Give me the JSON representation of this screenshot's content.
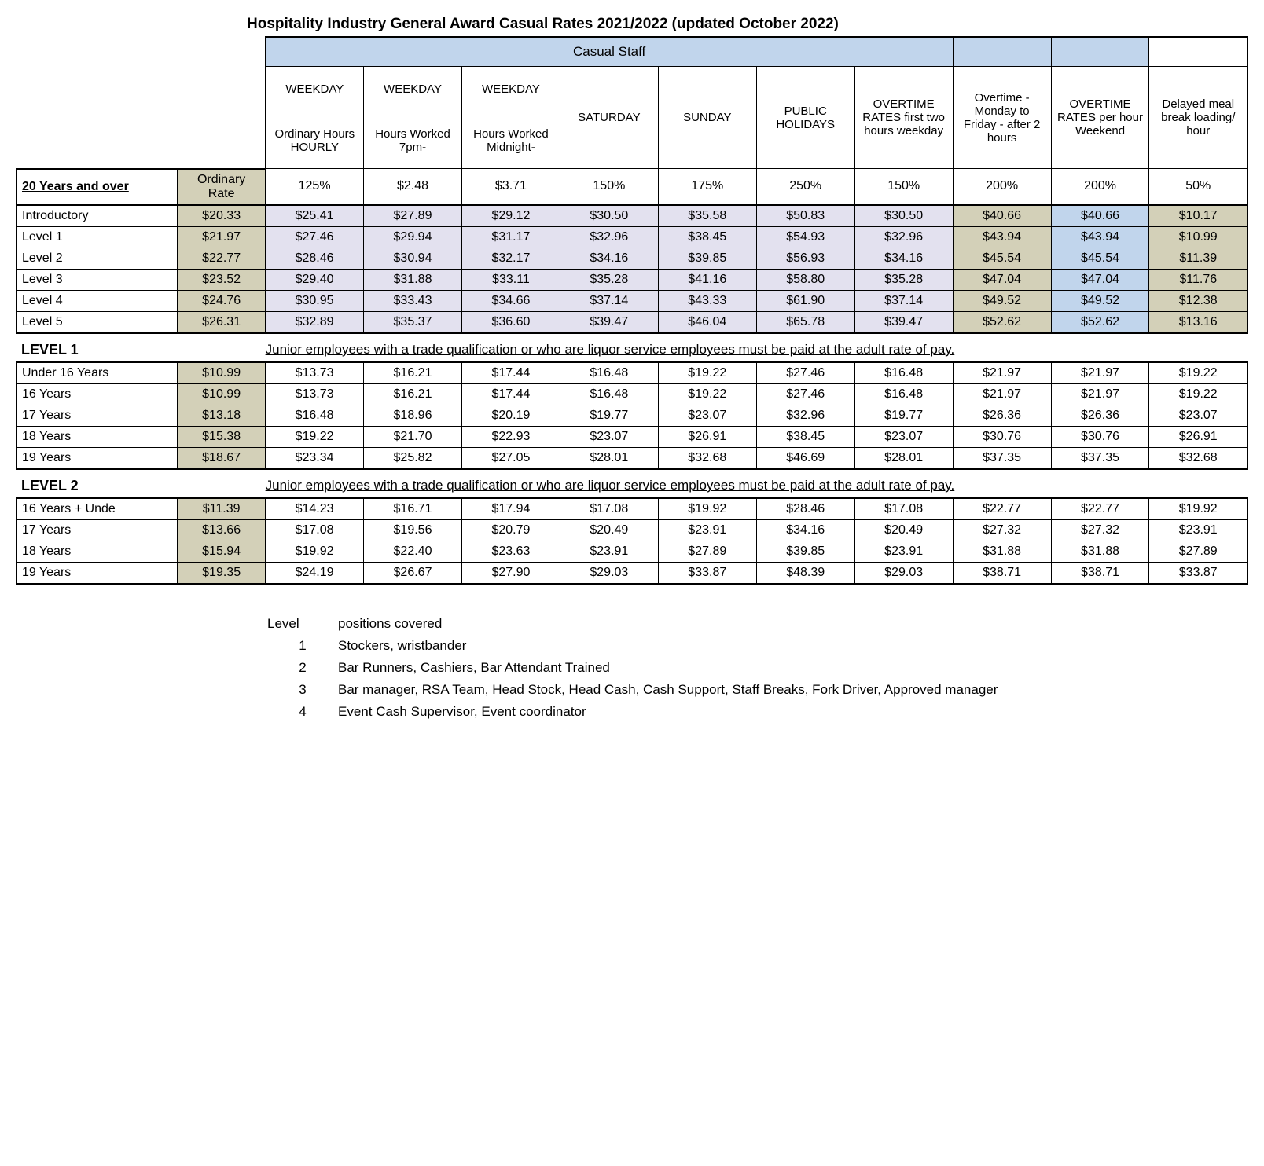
{
  "title": "Hospitality Industry General Award  Casual Rates 2021/2022 (updated October 2022)",
  "casual_staff_header": "Casual Staff",
  "colors": {
    "header_blue": "#c1d5ec",
    "khaki": "#d3d0b8",
    "lavender": "#e3e1ef",
    "border": "#000000",
    "background": "#ffffff"
  },
  "headers": {
    "weekday1_top": "WEEKDAY",
    "weekday1_sub": "Ordinary Hours HOURLY",
    "weekday2_top": "WEEKDAY",
    "weekday2_sub": "Hours Worked 7pm-",
    "weekday3_top": "WEEKDAY",
    "weekday3_sub": "Hours Worked Midnight-",
    "saturday": "SATURDAY",
    "sunday": "SUNDAY",
    "public": "PUBLIC HOLIDAYS",
    "ot_first": "OVERTIME RATES first two hours weekday",
    "ot_after2": "Overtime -Monday to Friday - after 2 hours",
    "ot_weekend": "OVERTIME RATES per hour Weekend",
    "meal": "Delayed meal break loading/ hour"
  },
  "percent_row": {
    "label": "20 Years and over",
    "rate_label": "Ordinary Rate",
    "vals": [
      "125%",
      "$2.48",
      "$3.71",
      "150%",
      "175%",
      "250%",
      "150%",
      "200%",
      "200%",
      "50%"
    ]
  },
  "adult_rows": [
    {
      "label": "Introductory",
      "rate": "$20.33",
      "v": [
        "$25.41",
        "$27.89",
        "$29.12",
        "$30.50",
        "$35.58",
        "$50.83",
        "$30.50",
        "$40.66",
        "$40.66",
        "$10.17"
      ]
    },
    {
      "label": "Level 1",
      "rate": "$21.97",
      "v": [
        "$27.46",
        "$29.94",
        "$31.17",
        "$32.96",
        "$38.45",
        "$54.93",
        "$32.96",
        "$43.94",
        "$43.94",
        "$10.99"
      ]
    },
    {
      "label": "Level 2",
      "rate": "$22.77",
      "v": [
        "$28.46",
        "$30.94",
        "$32.17",
        "$34.16",
        "$39.85",
        "$56.93",
        "$34.16",
        "$45.54",
        "$45.54",
        "$11.39"
      ]
    },
    {
      "label": "Level 3",
      "rate": "$23.52",
      "v": [
        "$29.40",
        "$31.88",
        "$33.11",
        "$35.28",
        "$41.16",
        "$58.80",
        "$35.28",
        "$47.04",
        "$47.04",
        "$11.76"
      ]
    },
    {
      "label": "Level 4",
      "rate": "$24.76",
      "v": [
        "$30.95",
        "$33.43",
        "$34.66",
        "$37.14",
        "$43.33",
        "$61.90",
        "$37.14",
        "$49.52",
        "$49.52",
        "$12.38"
      ]
    },
    {
      "label": "Level 5",
      "rate": "$26.31",
      "v": [
        "$32.89",
        "$35.37",
        "$36.60",
        "$39.47",
        "$46.04",
        "$65.78",
        "$39.47",
        "$52.62",
        "$52.62",
        "$13.16"
      ]
    }
  ],
  "section_note": "Junior employees with a trade qualification or who are liquor service employees must be paid at the adult rate of pay.",
  "level1_title": "LEVEL 1",
  "level1_rows": [
    {
      "label": "Under 16 Years",
      "rate": "$10.99",
      "v": [
        "$13.73",
        "$16.21",
        "$17.44",
        "$16.48",
        "$19.22",
        "$27.46",
        "$16.48",
        "$21.97",
        "$21.97",
        "$19.22"
      ]
    },
    {
      "label": "16 Years",
      "rate": "$10.99",
      "v": [
        "$13.73",
        "$16.21",
        "$17.44",
        "$16.48",
        "$19.22",
        "$27.46",
        "$16.48",
        "$21.97",
        "$21.97",
        "$19.22"
      ]
    },
    {
      "label": "17 Years",
      "rate": "$13.18",
      "v": [
        "$16.48",
        "$18.96",
        "$20.19",
        "$19.77",
        "$23.07",
        "$32.96",
        "$19.77",
        "$26.36",
        "$26.36",
        "$23.07"
      ]
    },
    {
      "label": "18 Years",
      "rate": "$15.38",
      "v": [
        "$19.22",
        "$21.70",
        "$22.93",
        "$23.07",
        "$26.91",
        "$38.45",
        "$23.07",
        "$30.76",
        "$30.76",
        "$26.91"
      ]
    },
    {
      "label": "19 Years",
      "rate": "$18.67",
      "v": [
        "$23.34",
        "$25.82",
        "$27.05",
        "$28.01",
        "$32.68",
        "$46.69",
        "$28.01",
        "$37.35",
        "$37.35",
        "$32.68"
      ]
    }
  ],
  "level2_title": "LEVEL 2",
  "level2_rows": [
    {
      "label": "16 Years + Unde",
      "rate": "$11.39",
      "v": [
        "$14.23",
        "$16.71",
        "$17.94",
        "$17.08",
        "$19.92",
        "$28.46",
        "$17.08",
        "$22.77",
        "$22.77",
        "$19.92"
      ]
    },
    {
      "label": "17 Years",
      "rate": "$13.66",
      "v": [
        "$17.08",
        "$19.56",
        "$20.79",
        "$20.49",
        "$23.91",
        "$34.16",
        "$20.49",
        "$27.32",
        "$27.32",
        "$23.91"
      ]
    },
    {
      "label": "18 Years",
      "rate": "$15.94",
      "v": [
        "$19.92",
        "$22.40",
        "$23.63",
        "$23.91",
        "$27.89",
        "$39.85",
        "$23.91",
        "$31.88",
        "$31.88",
        "$27.89"
      ]
    },
    {
      "label": "19 Years",
      "rate": "$19.35",
      "v": [
        "$24.19",
        "$26.67",
        "$27.90",
        "$29.03",
        "$33.87",
        "$48.39",
        "$29.03",
        "$38.71",
        "$38.71",
        "$33.87"
      ]
    }
  ],
  "legend": {
    "header_level": "Level",
    "header_positions": "positions covered",
    "rows": [
      {
        "level": "1",
        "text": "Stockers, wristbander"
      },
      {
        "level": "2",
        "text": "Bar Runners, Cashiers, Bar Attendant Trained"
      },
      {
        "level": "3",
        "text": "Bar manager, RSA Team, Head Stock, Head Cash, Cash Support, Staff Breaks, Fork Driver, Approved manager"
      },
      {
        "level": "4",
        "text": "Event Cash Supervisor, Event coordinator"
      }
    ]
  }
}
